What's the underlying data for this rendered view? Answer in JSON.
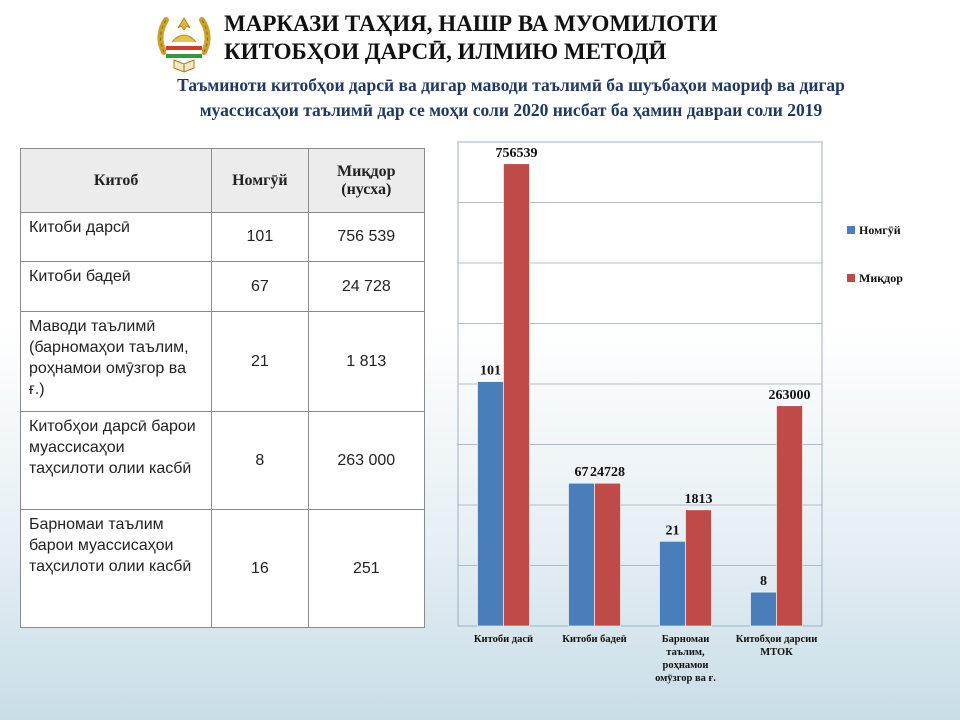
{
  "header": {
    "org_line1": "МАРКАЗИ ТАҲИЯ, НАШР ВА МУОМИЛОТИ",
    "org_line2": "КИТОБҲОИ ДАРСӢ,  ИЛМИЮ МЕТОДӢ",
    "subtitle_line1": "Таъминоти китобҳои дарсӣ ва дигар маводи таълимӣ ба шуъбаҳои маориф ва дигар",
    "subtitle_line2": "муассисаҳои таълимӣ дар се моҳи соли 2020 нисбат ба ҳамин давраи соли 2019"
  },
  "table": {
    "headers": [
      "Китоб",
      "Номгӯй",
      "Миқдор (нусха)"
    ],
    "rows": [
      {
        "name": "Китоби дарсӣ",
        "count": "101",
        "qty": "756 539"
      },
      {
        "name": "Китоби бадеӣ",
        "count": "67",
        "qty": "24 728"
      },
      {
        "name": "Маводи таълимӣ (барномаҳои таълим, роҳнамои омӯзгор ва ғ.)",
        "count": "21",
        "qty": "1 813"
      },
      {
        "name": "Китобҳои дарсӣ барои муассисаҳои таҳсилоти олии касбӣ",
        "count": "8",
        "qty": "263 000"
      },
      {
        "name": "Барномаи таълим барои муассисаҳои таҳсилоти олии касбӣ",
        "count": "16",
        "qty": "251"
      }
    ]
  },
  "chart_data": {
    "type": "bar",
    "categories": [
      [
        "Китоби дасӣ"
      ],
      [
        "Китоби бадеӣ"
      ],
      [
        "Барномаи",
        "таълим,",
        "роҳнамои",
        "омӯзгор ва ғ."
      ],
      [
        "Китобҳои дарсии",
        "МТОК"
      ]
    ],
    "series": [
      {
        "name": "Номгӯй",
        "color": "#4a7ebb",
        "values": [
          101,
          67,
          21,
          8
        ],
        "labels": [
          "101",
          "67",
          "21",
          "8"
        ]
      },
      {
        "name": "Миқдор",
        "color": "#be4b48",
        "values": [
          756539,
          24728,
          1813,
          263000
        ],
        "labels": [
          "756539",
          "24728",
          "1813",
          "263000"
        ]
      }
    ],
    "scale": "non-linear (visual heights not proportional to values)",
    "visual_fraction": {
      "Номгӯй": [
        0.505,
        0.295,
        0.175,
        0.07
      ],
      "Миқдор": [
        0.955,
        0.295,
        0.24,
        0.455
      ]
    },
    "legend": "right",
    "grid": true,
    "gridlines": 8
  }
}
